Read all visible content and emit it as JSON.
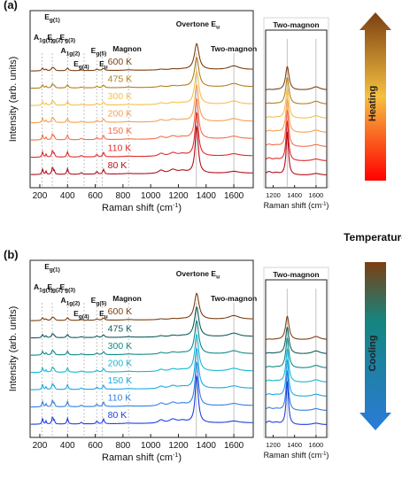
{
  "panels": [
    {
      "tag": "(a)",
      "mode": "heating",
      "main": {
        "xlabel": "Raman shift (cm",
        "xlabel_sup": "-1",
        "xlabel_end": ")",
        "ylabel": "Intensity (arb. units)",
        "xlim": [
          130,
          1740
        ],
        "xticks": [
          200,
          400,
          600,
          800,
          1000,
          1200,
          1400,
          1600
        ],
        "mode_labels": [
          {
            "base": "A",
            "sub": "1g(1)",
            "x": 225,
            "row": 2
          },
          {
            "base": "E",
            "sub": "g(1)",
            "x": 290,
            "row": 0
          },
          {
            "base": "E",
            "sub": "g(2)",
            "x": 325,
            "row": 2,
            "suffix": " , "
          },
          {
            "base": "E",
            "sub": "g(3)",
            "x": 400,
            "row": 2
          },
          {
            "base": "A",
            "sub": "1g(2)",
            "x": 420,
            "row": 4
          },
          {
            "base": "E",
            "sub": "g(4)",
            "x": 500,
            "row": 5
          },
          {
            "base": "E",
            "sub": "g(5)",
            "x": 625,
            "row": 4
          },
          {
            "base": "E",
            "sub": "u",
            "x": 660,
            "row": 5
          },
          {
            "base": "Magnon",
            "sub": "",
            "x": 830,
            "row": 3
          },
          {
            "base": "Overtone E",
            "sub": "u",
            "x": 1340,
            "row": 1
          },
          {
            "base": "Two-magnon",
            "sub": "",
            "x": 1600,
            "row": 3
          }
        ],
        "guide_lines": [
          215,
          290,
          400,
          520,
          610,
          650,
          840,
          1330,
          1600
        ]
      },
      "inset": {
        "title": "Two-magnon",
        "xlabel": "Raman shift (cm",
        "xlabel_sup": "-1",
        "xlabel_end": ")",
        "xlim": [
          1130,
          1700
        ],
        "xticks": [
          1200,
          1400,
          1600
        ],
        "guide_lines": [
          1330,
          1600
        ]
      },
      "series": [
        {
          "name": "600 K",
          "color": "#7b3f12"
        },
        {
          "name": "475 K",
          "color": "#b08019"
        },
        {
          "name": "300 K",
          "color": "#f5c04a"
        },
        {
          "name": "200 K",
          "color": "#f7a050"
        },
        {
          "name": "150 K",
          "color": "#f36e48"
        },
        {
          "name": "110 K",
          "color": "#de2a2a"
        },
        {
          "name": "80 K",
          "color": "#b10f1c"
        }
      ],
      "colorbar": {
        "label": "Heating",
        "top": "#7b3f12",
        "mid": "#f5c040",
        "bottom": "#ff0000",
        "arrow": "up"
      }
    },
    {
      "tag": "(b)",
      "mode": "cooling",
      "main": {
        "xlabel": "Raman shift (cm",
        "xlabel_sup": "-1",
        "xlabel_end": ")",
        "ylabel": "Intensity (arb. units)",
        "xlim": [
          130,
          1740
        ],
        "xticks": [
          200,
          400,
          600,
          800,
          1000,
          1200,
          1400,
          1600
        ],
        "mode_labels": [
          {
            "base": "A",
            "sub": "1g(1)",
            "x": 225,
            "row": 2
          },
          {
            "base": "E",
            "sub": "g(1)",
            "x": 290,
            "row": 0
          },
          {
            "base": "E",
            "sub": "g(2)",
            "x": 325,
            "row": 2,
            "suffix": " , "
          },
          {
            "base": "E",
            "sub": "g(3)",
            "x": 400,
            "row": 2
          },
          {
            "base": "A",
            "sub": "1g(2)",
            "x": 420,
            "row": 4
          },
          {
            "base": "E",
            "sub": "g(4)",
            "x": 500,
            "row": 5
          },
          {
            "base": "E",
            "sub": "g(5)",
            "x": 625,
            "row": 4
          },
          {
            "base": "E",
            "sub": "u",
            "x": 660,
            "row": 5
          },
          {
            "base": "Magnon",
            "sub": "",
            "x": 830,
            "row": 3
          },
          {
            "base": "Overtone E",
            "sub": "u",
            "x": 1340,
            "row": 1
          },
          {
            "base": "Two-magnon",
            "sub": "",
            "x": 1600,
            "row": 3
          }
        ],
        "guide_lines": [
          215,
          290,
          400,
          520,
          610,
          650,
          840,
          1330,
          1600
        ]
      },
      "inset": {
        "title": "Two-magnon",
        "xlabel": "Raman shift (cm",
        "xlabel_sup": "-1",
        "xlabel_end": ")",
        "xlim": [
          1130,
          1700
        ],
        "xticks": [
          1200,
          1400,
          1600
        ],
        "guide_lines": [
          1330,
          1600
        ]
      },
      "series": [
        {
          "name": "600 K",
          "color": "#7b3f12"
        },
        {
          "name": "475 K",
          "color": "#125a5a"
        },
        {
          "name": "300 K",
          "color": "#0f8a86"
        },
        {
          "name": "200 K",
          "color": "#16b7d4"
        },
        {
          "name": "150 K",
          "color": "#1aa7e6"
        },
        {
          "name": "110 K",
          "color": "#2f7fe0"
        },
        {
          "name": "80 K",
          "color": "#1e3ee0"
        }
      ],
      "colorbar": {
        "label": "Cooling",
        "top": "#7b3f12",
        "mid": "#15857f",
        "bottom": "#2b7bd8",
        "arrow": "down"
      }
    }
  ],
  "shared_label": "Temperature",
  "chart_data": [
    {
      "type": "line",
      "panel": "(a)",
      "xlabel": "Raman shift (cm-1)",
      "ylabel": "Intensity (arb. units)",
      "xlim": [
        130,
        1740
      ],
      "series": [
        {
          "name": "600 K",
          "peak_positions": [
            215,
            290,
            400,
            520,
            610,
            650,
            840,
            1330,
            1600
          ]
        },
        {
          "name": "475 K",
          "peak_positions": [
            215,
            290,
            400,
            520,
            610,
            650,
            840,
            1330,
            1600
          ]
        },
        {
          "name": "300 K",
          "peak_positions": [
            215,
            290,
            400,
            520,
            610,
            650,
            840,
            1330,
            1600
          ]
        },
        {
          "name": "200 K",
          "peak_positions": [
            215,
            290,
            400,
            520,
            610,
            650,
            840,
            1330,
            1600
          ]
        },
        {
          "name": "150 K",
          "peak_positions": [
            215,
            290,
            400,
            520,
            610,
            650,
            840,
            1330,
            1600
          ]
        },
        {
          "name": "110 K",
          "peak_positions": [
            215,
            290,
            400,
            520,
            610,
            650,
            840,
            1330,
            1600
          ]
        },
        {
          "name": "80 K",
          "peak_positions": [
            215,
            290,
            400,
            520,
            610,
            650,
            840,
            1330,
            1600
          ]
        }
      ]
    },
    {
      "type": "line",
      "panel": "(b)",
      "xlabel": "Raman shift (cm-1)",
      "ylabel": "Intensity (arb. units)",
      "xlim": [
        130,
        1740
      ],
      "series": [
        {
          "name": "600 K",
          "peak_positions": [
            215,
            290,
            400,
            520,
            610,
            650,
            840,
            1330,
            1600
          ]
        },
        {
          "name": "475 K",
          "peak_positions": [
            215,
            290,
            400,
            520,
            610,
            650,
            840,
            1330,
            1600
          ]
        },
        {
          "name": "300 K",
          "peak_positions": [
            215,
            290,
            400,
            520,
            610,
            650,
            840,
            1330,
            1600
          ]
        },
        {
          "name": "200 K",
          "peak_positions": [
            215,
            290,
            400,
            520,
            610,
            650,
            840,
            1330,
            1600
          ]
        },
        {
          "name": "150 K",
          "peak_positions": [
            215,
            290,
            400,
            520,
            610,
            650,
            840,
            1330,
            1600
          ]
        },
        {
          "name": "110 K",
          "peak_positions": [
            215,
            290,
            400,
            520,
            610,
            650,
            840,
            1330,
            1600
          ]
        },
        {
          "name": "80 K",
          "peak_positions": [
            215,
            290,
            400,
            520,
            610,
            650,
            840,
            1330,
            1600
          ]
        }
      ]
    }
  ]
}
